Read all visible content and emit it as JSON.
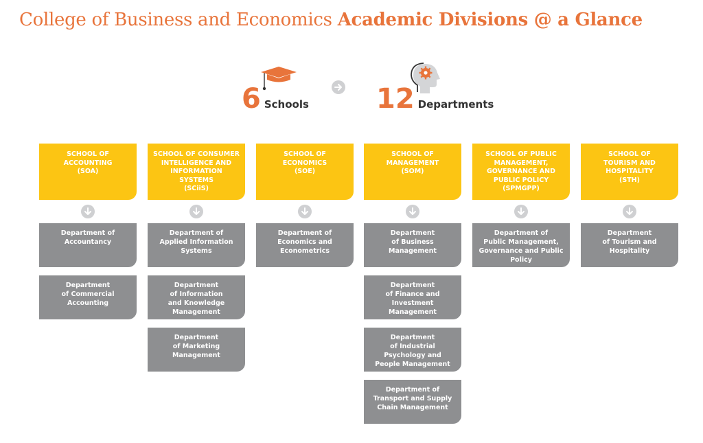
{
  "title": {
    "light": "College of Business and Economics",
    "bold": "Academic Divisions @ a Glance"
  },
  "stats": {
    "schools": {
      "number": "6",
      "label": "Schools",
      "icon": "graduation-cap-icon"
    },
    "departments": {
      "number": "12",
      "label": "Departments",
      "icon": "head-gear-icon"
    }
  },
  "colors": {
    "accent": "#e8743b",
    "school_box": "#fcc513",
    "dept_box": "#8e8f91",
    "arrow_circle": "#cfd0d2"
  },
  "schools": [
    {
      "name": "SCHOOL OF\nACCOUNTING\n(SOA)",
      "departments": [
        "Department of\nAccountancy",
        "Department\nof Commercial\nAccounting"
      ]
    },
    {
      "name": "SCHOOL OF CONSUMER\nINTELLIGENCE AND\nINFORMATION\nSYSTEMS\n(SCiiS)",
      "departments": [
        "Department of\nApplied Information\nSystems",
        "Department\nof Information\nand Knowledge\nManagement",
        "Department\nof Marketing\nManagement"
      ]
    },
    {
      "name": "SCHOOL OF\nECONOMICS\n(SOE)",
      "departments": [
        "Department of\nEconomics and\nEconometrics"
      ]
    },
    {
      "name": "SCHOOL OF\nMANAGEMENT\n(SOM)",
      "departments": [
        "Department\nof Business\nManagement",
        "Department\nof Finance and\nInvestment\nManagement",
        "Department\nof Industrial\nPsychology and\nPeople Management",
        "Department of\nTransport and Supply\nChain Management"
      ]
    },
    {
      "name": "SCHOOL OF PUBLIC\nMANAGEMENT,\nGOVERNANCE AND\nPUBLIC POLICY\n(SPMGPP)",
      "departments": [
        "Department of\nPublic Management,\nGovernance and Public\nPolicy"
      ]
    },
    {
      "name": "SCHOOL OF\nTOURISM AND\nHOSPITALITY\n(STH)",
      "departments": [
        "Department\nof Tourism and\nHospitality"
      ]
    }
  ]
}
